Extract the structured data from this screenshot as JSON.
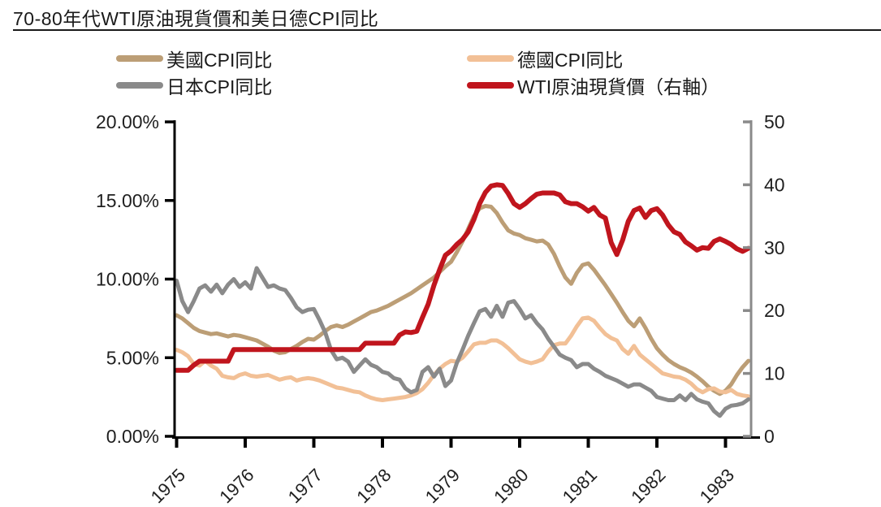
{
  "title": "70-80年代WTI原油現貨價和美日德CPI同比",
  "chart_data": {
    "type": "line",
    "title": "70-80年代WTI原油現貨價和美日德CPI同比",
    "grid": false,
    "legend_position": "top",
    "colors": {
      "left_axis": "#000000",
      "right_axis": "#8A8A8A",
      "axis_text": "#1F1F1F",
      "title_rule": "#1A1A1A"
    },
    "left_axis": {
      "unit": "%",
      "min": 0,
      "max": 20,
      "ticks": [
        {
          "label": "20.00%",
          "value": 20
        },
        {
          "label": "15.00%",
          "value": 15
        },
        {
          "label": "10.00%",
          "value": 10
        },
        {
          "label": "5.00%",
          "value": 5
        },
        {
          "label": "0.00%",
          "value": 0
        }
      ]
    },
    "right_axis": {
      "min": 0,
      "max": 50,
      "ticks": [
        {
          "label": "50",
          "value": 50
        },
        {
          "label": "40",
          "value": 40
        },
        {
          "label": "30",
          "value": 30
        },
        {
          "label": "20",
          "value": 20
        },
        {
          "label": "10",
          "value": 10
        },
        {
          "label": "0",
          "value": 0
        }
      ]
    },
    "x_axis": {
      "tick_labels": [
        "1975",
        "1976",
        "1977",
        "1978",
        "1979",
        "1980",
        "1981",
        "1982",
        "1983"
      ],
      "start_year": 1975,
      "interval_months": 1
    },
    "series": [
      {
        "id": "us_cpi",
        "name": "美國CPI同比",
        "axis": "left",
        "color": "#BC9E76",
        "values": [
          7.7,
          7.5,
          7.2,
          6.9,
          6.7,
          6.6,
          6.5,
          6.55,
          6.45,
          6.35,
          6.45,
          6.4,
          6.3,
          6.2,
          6.1,
          5.9,
          5.7,
          5.45,
          5.3,
          5.35,
          5.55,
          5.75,
          6.0,
          6.2,
          6.15,
          6.4,
          6.7,
          6.95,
          7.05,
          6.95,
          7.1,
          7.3,
          7.5,
          7.7,
          7.9,
          8.0,
          8.15,
          8.3,
          8.5,
          8.7,
          8.9,
          9.1,
          9.35,
          9.6,
          9.85,
          10.1,
          10.45,
          10.8,
          11.1,
          11.7,
          12.4,
          13.2,
          14.0,
          14.5,
          14.65,
          14.6,
          14.2,
          13.6,
          13.1,
          12.9,
          12.8,
          12.6,
          12.5,
          12.4,
          12.45,
          12.2,
          11.6,
          10.8,
          10.1,
          9.7,
          10.4,
          10.9,
          11.0,
          10.6,
          10.1,
          9.6,
          9.05,
          8.5,
          7.9,
          7.35,
          7.0,
          7.5,
          6.9,
          6.2,
          5.6,
          5.2,
          4.85,
          4.6,
          4.4,
          4.25,
          4.05,
          3.8,
          3.5,
          3.15,
          2.9,
          2.7,
          2.9,
          3.3,
          3.9,
          4.4,
          4.8
        ]
      },
      {
        "id": "jp_cpi",
        "name": "日本CPI同比",
        "axis": "left",
        "color": "#8A8A8A",
        "values": [
          9.9,
          8.6,
          7.9,
          8.6,
          9.4,
          9.6,
          9.2,
          9.65,
          9.1,
          9.65,
          10.0,
          9.5,
          9.8,
          9.4,
          10.7,
          10.1,
          9.5,
          9.6,
          9.4,
          9.3,
          8.8,
          8.2,
          7.9,
          8.05,
          8.1,
          7.4,
          6.6,
          5.5,
          4.9,
          5.0,
          4.75,
          4.1,
          4.5,
          4.9,
          4.55,
          4.4,
          4.1,
          4.0,
          3.7,
          3.6,
          3.05,
          2.8,
          2.95,
          4.1,
          4.4,
          3.8,
          4.3,
          3.2,
          3.55,
          4.65,
          5.5,
          6.4,
          7.2,
          7.95,
          8.1,
          7.6,
          8.3,
          7.6,
          8.5,
          8.6,
          8.1,
          7.5,
          7.7,
          7.2,
          6.8,
          6.2,
          5.7,
          5.2,
          5.0,
          4.85,
          4.4,
          4.6,
          4.6,
          4.3,
          4.1,
          3.85,
          3.7,
          3.55,
          3.35,
          3.15,
          3.3,
          3.3,
          3.1,
          2.9,
          2.5,
          2.4,
          2.3,
          2.3,
          2.6,
          2.3,
          2.7,
          2.35,
          2.2,
          2.1,
          1.6,
          1.3,
          1.75,
          1.95,
          2.0,
          2.1,
          2.35
        ]
      },
      {
        "id": "de_cpi",
        "name": "德國CPI同比",
        "axis": "left",
        "color": "#F2C096",
        "values": [
          5.5,
          5.35,
          5.1,
          4.6,
          4.5,
          4.8,
          4.5,
          4.3,
          3.85,
          3.75,
          3.7,
          3.9,
          4.0,
          3.85,
          3.8,
          3.85,
          3.9,
          3.75,
          3.6,
          3.7,
          3.75,
          3.55,
          3.65,
          3.7,
          3.65,
          3.55,
          3.4,
          3.25,
          3.1,
          3.05,
          2.95,
          2.85,
          2.8,
          2.6,
          2.45,
          2.35,
          2.3,
          2.35,
          2.4,
          2.45,
          2.5,
          2.6,
          2.75,
          3.0,
          3.4,
          3.9,
          4.3,
          4.6,
          4.8,
          4.75,
          5.0,
          5.4,
          5.85,
          5.95,
          5.95,
          6.1,
          6.1,
          5.9,
          5.6,
          5.25,
          4.9,
          4.75,
          4.65,
          4.75,
          4.9,
          5.4,
          5.8,
          5.9,
          5.9,
          6.4,
          7.0,
          7.5,
          7.55,
          7.35,
          6.9,
          6.5,
          6.25,
          6.1,
          5.55,
          5.25,
          5.75,
          5.2,
          4.9,
          4.6,
          4.3,
          4.0,
          3.9,
          3.8,
          3.75,
          3.6,
          3.35,
          3.0,
          2.8,
          3.0,
          3.05,
          2.85,
          2.8,
          2.95,
          2.7,
          2.6,
          2.55
        ]
      },
      {
        "id": "wti",
        "name": "WTI原油現貨價（右軸）",
        "axis": "right",
        "color": "#C0151D",
        "values": [
          10.5,
          10.5,
          10.5,
          11.3,
          11.95,
          11.95,
          11.95,
          11.95,
          11.95,
          11.95,
          13.8,
          13.8,
          13.8,
          13.8,
          13.8,
          13.8,
          13.8,
          13.8,
          13.8,
          13.8,
          13.8,
          13.8,
          13.8,
          13.8,
          13.8,
          13.8,
          13.8,
          13.8,
          13.8,
          13.8,
          13.8,
          13.8,
          13.8,
          14.8,
          14.8,
          14.8,
          14.8,
          14.8,
          14.8,
          16.1,
          16.6,
          16.5,
          16.7,
          18.9,
          21.0,
          24.0,
          26.5,
          28.8,
          29.5,
          30.5,
          31.3,
          32.5,
          34.5,
          37.0,
          38.8,
          39.8,
          40.0,
          39.9,
          38.6,
          37.0,
          36.4,
          37.0,
          37.8,
          38.5,
          38.7,
          38.7,
          38.7,
          38.4,
          37.3,
          37.0,
          37.0,
          36.5,
          35.8,
          36.4,
          35.2,
          34.7,
          30.8,
          28.9,
          31.2,
          34.2,
          35.9,
          36.3,
          34.8,
          35.9,
          36.2,
          35.2,
          33.6,
          32.5,
          32.1,
          30.9,
          30.3,
          29.6,
          30.0,
          29.9,
          31.0,
          31.4,
          31.0,
          30.5,
          29.8,
          29.4,
          29.9
        ]
      }
    ],
    "legend_order": [
      0,
      2,
      1,
      3
    ]
  }
}
